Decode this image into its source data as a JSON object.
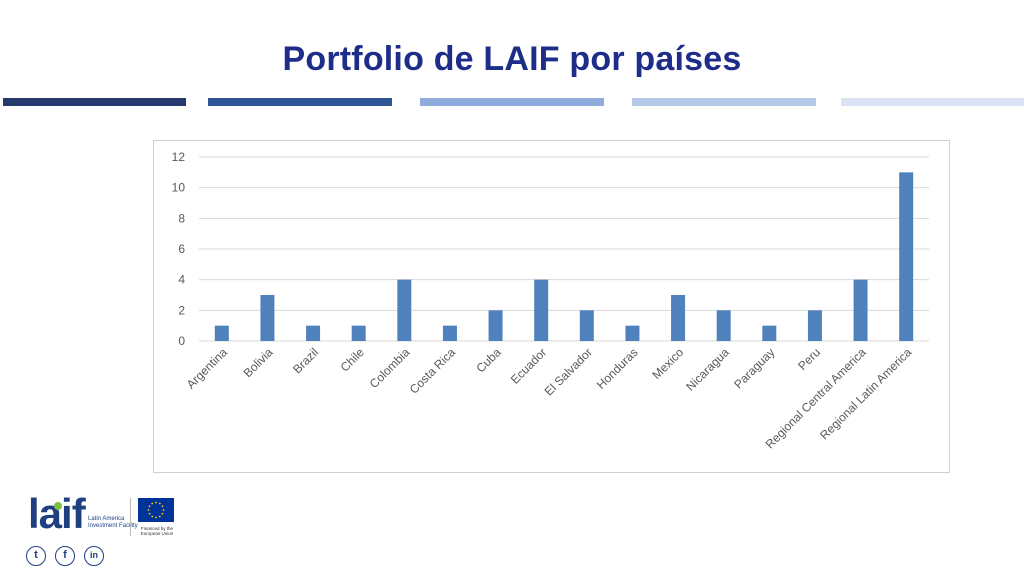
{
  "slide": {
    "title": "Portfolio de LAIF por países",
    "stripes": [
      {
        "color": "#25396e"
      },
      {
        "color": "#2f5597"
      },
      {
        "color": "#8faadc"
      },
      {
        "color": "#b4c7e7"
      },
      {
        "color": "#dae3f3"
      }
    ]
  },
  "chart_data": {
    "type": "bar",
    "title": "",
    "xlabel": "",
    "ylabel": "",
    "categories": [
      "Argentina",
      "Bolivia",
      "Brazil",
      "Chile",
      "Colombia",
      "Costa Rica",
      "Cuba",
      "Ecuador",
      "El Salvador",
      "Honduras",
      "Mexico",
      "Nicaragua",
      "Paraguay",
      "Peru",
      "Regional Central America",
      "Regional Latin America"
    ],
    "values": [
      1,
      3,
      1,
      1,
      4,
      1,
      2,
      4,
      2,
      1,
      3,
      2,
      1,
      2,
      4,
      11
    ],
    "ylim": [
      0,
      12
    ],
    "yticks": [
      0,
      2,
      4,
      6,
      8,
      10,
      12
    ],
    "grid": true,
    "bar_color": "#4f81bd",
    "grid_color": "#d9d9d9"
  },
  "footer": {
    "logo_word": "laif",
    "logo_subtitle": "Latin America Investment Facility",
    "eu_caption": "Financed by the European Union",
    "social_icons": [
      "twitter-icon",
      "facebook-icon",
      "linkedin-icon"
    ],
    "social_glyphs": [
      "t",
      "f",
      "in"
    ]
  }
}
